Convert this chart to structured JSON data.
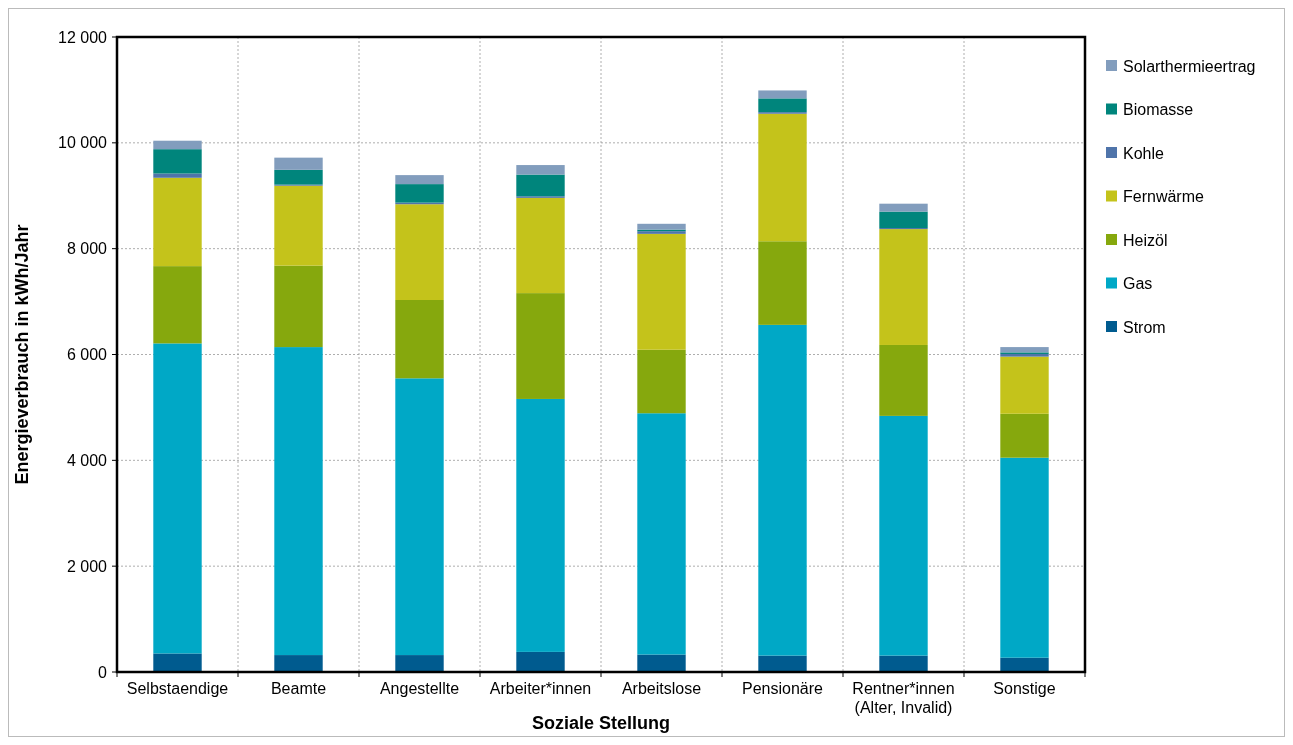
{
  "chart_data": {
    "type": "bar",
    "stacked": true,
    "xlabel": "Soziale Stellung",
    "ylabel": "Energieverbrauch in kWh/Jahr",
    "categories": [
      "Selbstaendige",
      "Beamte",
      "Angestellte",
      "Arbeiter*innen",
      "Arbeitslose",
      "Pensionäre",
      "Rentner*innen\n(Alter, Invalid)",
      "Sonstige"
    ],
    "series": [
      {
        "name": "Strom",
        "color": "#005b8f",
        "values": [
          350,
          320,
          320,
          380,
          330,
          310,
          310,
          270
        ]
      },
      {
        "name": "Gas",
        "color": "#00a8c6",
        "values": [
          5860,
          5820,
          5230,
          4780,
          4560,
          6250,
          4530,
          3780
        ]
      },
      {
        "name": "Heizöl",
        "color": "#86a80d",
        "values": [
          1460,
          1540,
          1480,
          2000,
          1200,
          1580,
          1340,
          830
        ]
      },
      {
        "name": "Fernwärme",
        "color": "#c4c31b",
        "values": [
          1670,
          1510,
          1810,
          1800,
          2190,
          2410,
          2190,
          1080
        ]
      },
      {
        "name": "Kohle",
        "color": "#4f74aa",
        "values": [
          80,
          20,
          30,
          30,
          50,
          30,
          20,
          50
        ]
      },
      {
        "name": "Biomasse",
        "color": "#00857c",
        "values": [
          460,
          280,
          350,
          410,
          30,
          260,
          310,
          30
        ]
      },
      {
        "name": "Solarthermieertrag",
        "color": "#829dbd",
        "values": [
          160,
          230,
          170,
          180,
          110,
          150,
          150,
          100
        ]
      }
    ],
    "ylim": [
      0,
      12000
    ],
    "yticks": [
      {
        "value": 0,
        "label": "0"
      },
      {
        "value": 2000,
        "label": "2 000"
      },
      {
        "value": 4000,
        "label": "4 000"
      },
      {
        "value": 6000,
        "label": "6 000"
      },
      {
        "value": 8000,
        "label": "8 000"
      },
      {
        "value": 10000,
        "label": "10 000"
      },
      {
        "value": 12000,
        "label": "12 000"
      }
    ],
    "grid": true,
    "legend": "right"
  }
}
